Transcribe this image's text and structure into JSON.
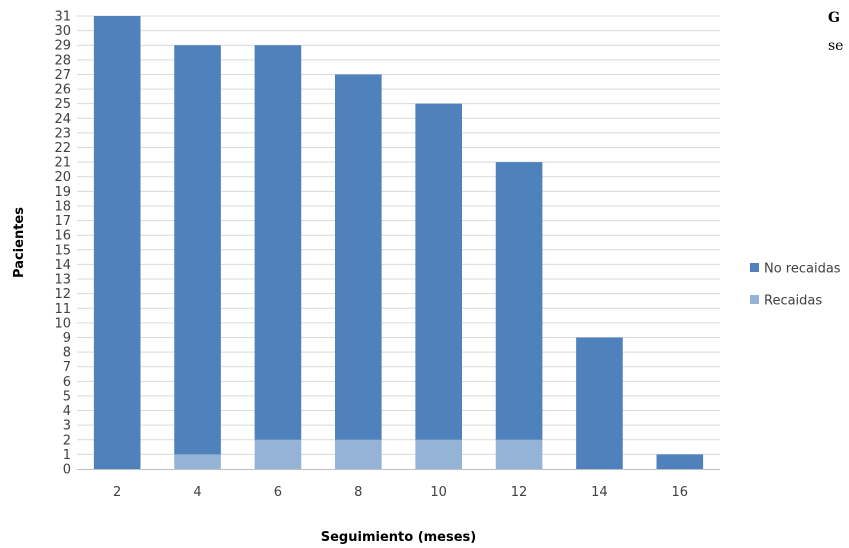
{
  "chart_data": {
    "type": "bar",
    "stacked": true,
    "categories": [
      "2",
      "4",
      "6",
      "8",
      "10",
      "12",
      "14",
      "16"
    ],
    "series": [
      {
        "name": "Recaidas",
        "values": [
          0,
          1,
          2,
          2,
          2,
          2,
          0,
          0
        ],
        "color": "#95B3D7"
      },
      {
        "name": "No recaidas",
        "values": [
          31,
          28,
          27,
          25,
          23,
          19,
          9,
          1
        ],
        "color": "#4F81BD"
      }
    ],
    "xlabel": "Seguimiento (meses)",
    "ylabel": "Pacientes",
    "ylim": [
      0,
      31
    ],
    "ytick_step": 1,
    "grid": true,
    "legend_position": "right"
  },
  "side_caption": {
    "bold_fragment": "G",
    "text_fragment": "se"
  }
}
